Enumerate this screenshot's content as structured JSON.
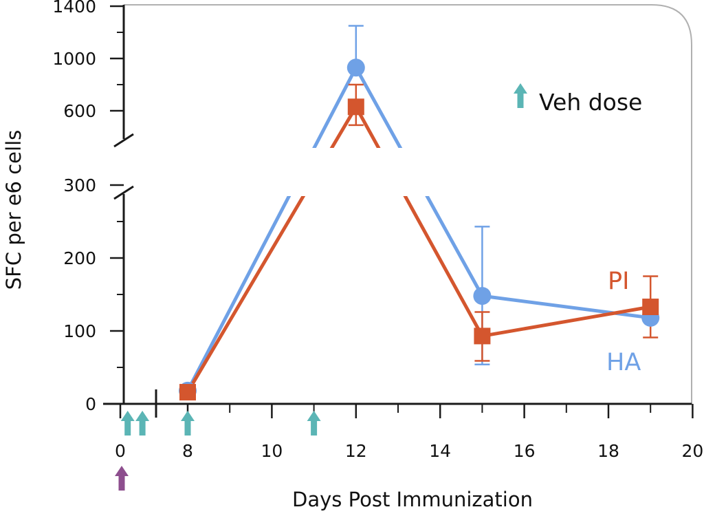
{
  "chart_data": {
    "type": "line",
    "title": "",
    "xlabel": "Days Post Immunization",
    "ylabel": "SFC per e6 cells",
    "x_tick_labels": [
      "0",
      "8",
      "10",
      "12",
      "14",
      "16",
      "18",
      "20"
    ],
    "y_tick_labels_lower": [
      "0",
      "100",
      "200",
      "300"
    ],
    "y_tick_labels_upper": [
      "600",
      "1000",
      "1400"
    ],
    "x_axis_break": true,
    "y_axis_break": true,
    "grid": false,
    "legend": {
      "label": "Veh dose",
      "placement": "top-right",
      "color": "#5bb5b5"
    },
    "veh_dose_days": [
      0.5,
      1.5,
      8,
      11
    ],
    "immunization_day": 0,
    "immunization_marker_color": "#8d4e8e",
    "series": [
      {
        "name": "HA",
        "color": "#6fa1e6",
        "marker": "circle",
        "x": [
          8,
          12,
          15,
          19
        ],
        "y": [
          18,
          930,
          148,
          118
        ],
        "error_upper": [
          18,
          1250,
          243,
          118
        ],
        "error_lower": [
          18,
          930,
          54,
          118
        ]
      },
      {
        "name": "PI",
        "color": "#d4562e",
        "marker": "square",
        "x": [
          8,
          12,
          15,
          19
        ],
        "y": [
          16,
          630,
          93,
          133
        ],
        "error_upper": [
          16,
          800,
          126,
          175
        ],
        "error_lower": [
          16,
          490,
          59,
          91
        ]
      }
    ]
  }
}
